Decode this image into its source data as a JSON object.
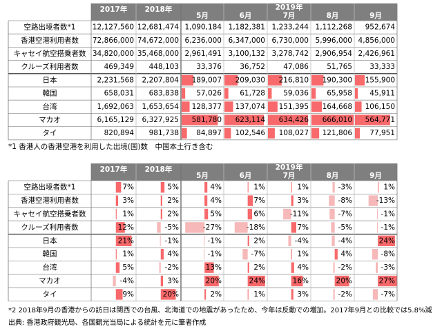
{
  "table1": {
    "header": {
      "years": [
        "2017年",
        "2018年",
        "2019年"
      ],
      "months": [
        "5月",
        "6月",
        "7月",
        "8月",
        "9月"
      ]
    },
    "rows": [
      {
        "label": "空路出境者数*1",
        "cells": [
          "12,127,560",
          "12,681,474",
          "1,090,184",
          "1,182,381",
          "1,233,244",
          "1,112,268",
          "952,674"
        ]
      },
      {
        "label": "香港空港利用者数",
        "cells": [
          "72,866,000",
          "74,672,000",
          "6,236,000",
          "6,347,000",
          "6,730,000",
          "5,996,000",
          "4,856,000"
        ]
      },
      {
        "label": "キャセイ航空搭乗者数",
        "cells": [
          "34,820,000",
          "35,468,000",
          "2,961,491",
          "3,100,132",
          "3,278,742",
          "2,906,954",
          "2,426,961"
        ]
      },
      {
        "label": "クルーズ利用者数",
        "cells": [
          "469,349",
          "448,103",
          "33,376",
          "36,752",
          "47,086",
          "51,765",
          "33,333"
        ]
      },
      {
        "label": "日本",
        "cells": [
          "2,231,568",
          "2,207,804",
          "189,007",
          "209,030",
          "216,810",
          "190,300",
          "155,900"
        ]
      },
      {
        "label": "韓国",
        "cells": [
          "658,031",
          "683,838",
          "57,026",
          "61,728",
          "59,036",
          "65,958",
          "45,911"
        ]
      },
      {
        "label": "台湾",
        "cells": [
          "1,692,063",
          "1,653,654",
          "128,377",
          "137,074",
          "151,395",
          "164,668",
          "106,150"
        ]
      },
      {
        "label": "マカオ",
        "cells": [
          "6,165,129",
          "6,327,925",
          "581,780",
          "623,114",
          "634,426",
          "666,010",
          "564,771"
        ]
      },
      {
        "label": "タイ",
        "cells": [
          "820,894",
          "981,738",
          "84,897",
          "102,546",
          "108,027",
          "121,806",
          "77,951"
        ]
      }
    ]
  },
  "note1": "*1 香港人の香港空港を利用した出境(国)数　中国本土行き含む",
  "table2": {
    "header": {
      "years": [
        "2017年",
        "2018年",
        "2019年"
      ],
      "months": [
        "5月",
        "6月",
        "7月",
        "8月",
        "9月"
      ]
    },
    "rows": [
      {
        "label": "空路出境者数*1",
        "cells": [
          "7%",
          "5%",
          "4%",
          "1%",
          "1%",
          "-3%",
          "1%"
        ]
      },
      {
        "label": "香港空港利用者数",
        "cells": [
          "3%",
          "2%",
          "4%",
          "7%",
          "3%",
          "-8%",
          "-13%"
        ]
      },
      {
        "label": "キャセイ航空搭乗者数",
        "cells": [
          "1%",
          "2%",
          "5%",
          "6%",
          "-11%",
          "-7%",
          "-1%"
        ]
      },
      {
        "label": "クルーズ利用者数",
        "cells": [
          "12%",
          "-5%",
          "-27%",
          "-18%",
          "7%",
          "-5%",
          "-1%"
        ]
      },
      {
        "label": "日本",
        "cells": [
          "21%",
          "-1%",
          "-1%",
          "2%",
          "-4%",
          "-4%",
          "24%"
        ]
      },
      {
        "label": "韓国",
        "cells": [
          "1%",
          "4%",
          "-1%",
          "-7%",
          "1%",
          "4%",
          "-8%"
        ]
      },
      {
        "label": "台湾",
        "cells": [
          "5%",
          "-2%",
          "13%",
          "2%",
          "4%",
          "-2%",
          "-3%"
        ]
      },
      {
        "label": "マカオ",
        "cells": [
          "-4%",
          "3%",
          "20%",
          "24%",
          "16%",
          "20%",
          "27%"
        ]
      },
      {
        "label": "タイ",
        "cells": [
          "9%",
          "20%",
          "2%",
          "1%",
          "3%",
          "-2%",
          "-7%"
        ]
      }
    ]
  },
  "note2": "*2 2018年9月の香港からの訪日は関西での台風、北海道での地震があったため、今年は反動での増加。2017年9月との比較では5.8%減",
  "source": "出典: 香港政府観光局、各国観光当局による統計を元に筆者作成"
}
